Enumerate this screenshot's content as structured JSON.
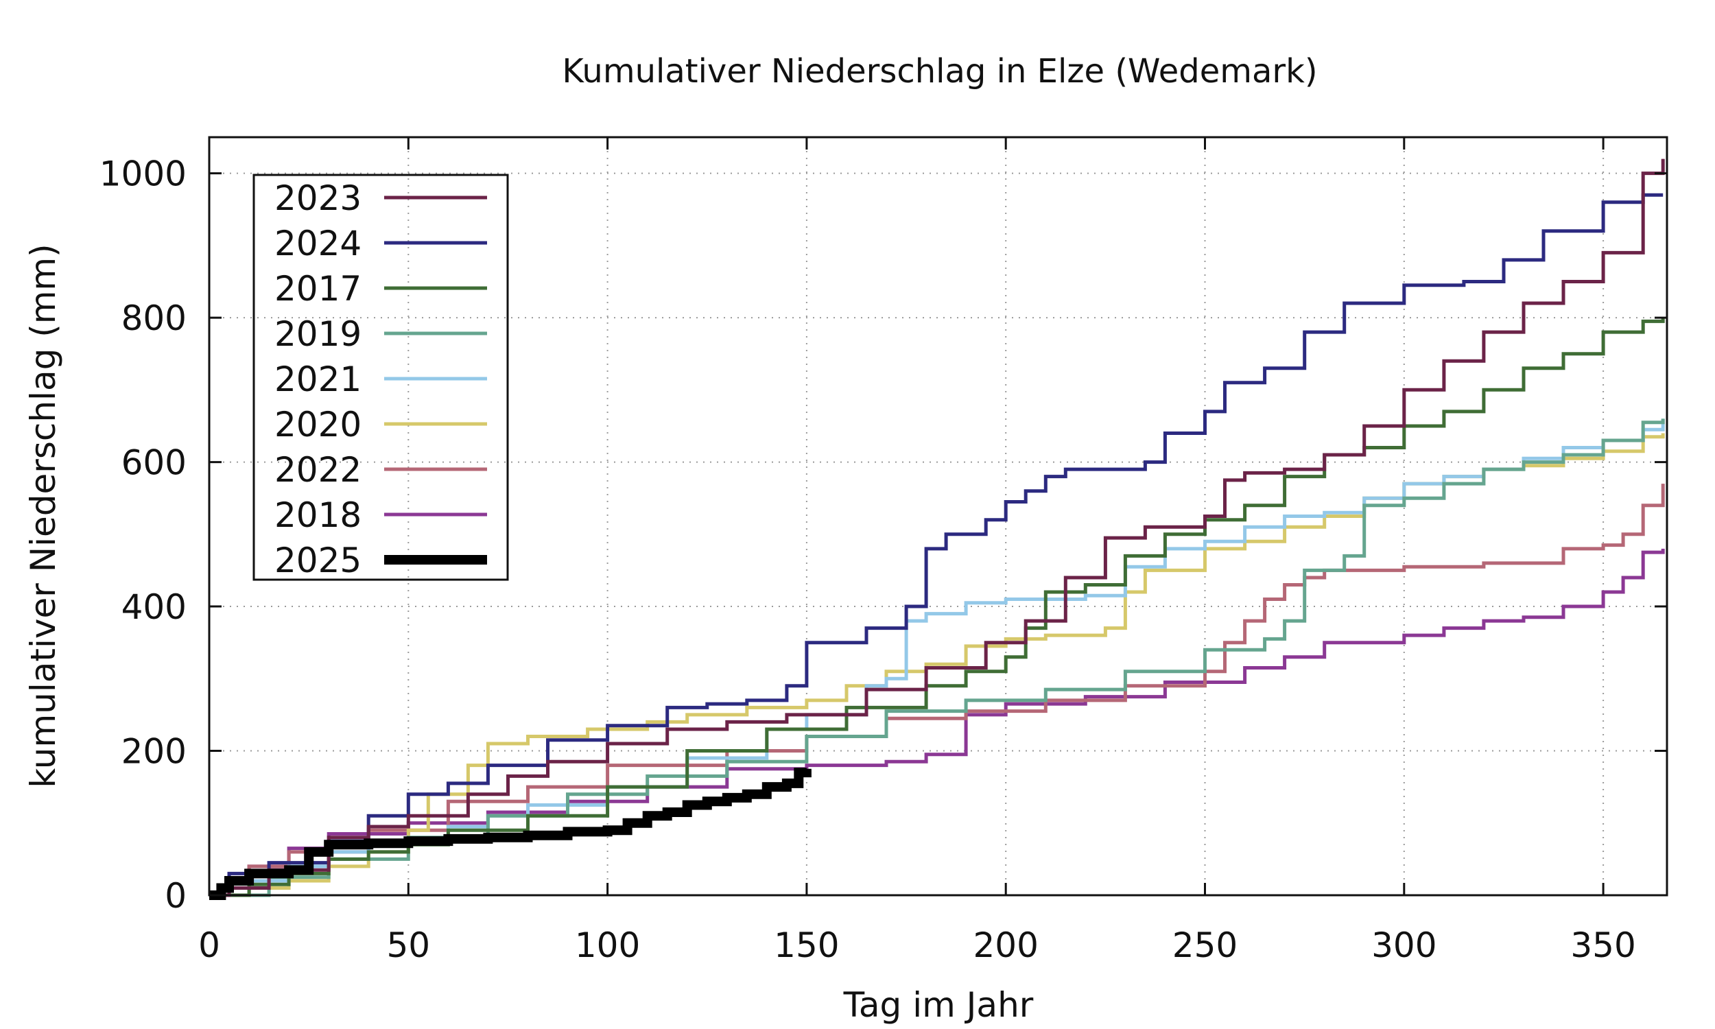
{
  "chart_data": {
    "type": "line",
    "title": "Kumulativer Niederschlag in Elze (Wedemark)",
    "xlabel": "Tag im Jahr",
    "ylabel": "kumulativer Niederschlag (mm)",
    "xlim": [
      0,
      366
    ],
    "ylim": [
      0,
      1050
    ],
    "xticks": [
      0,
      50,
      100,
      150,
      200,
      250,
      300,
      350
    ],
    "yticks": [
      0,
      200,
      400,
      600,
      800,
      1000
    ],
    "grid": true,
    "legend_position": "top-left",
    "series": [
      {
        "name": "2023",
        "color": "#6b2348",
        "width": 5,
        "x": [
          0,
          5,
          15,
          30,
          40,
          50,
          65,
          75,
          85,
          100,
          115,
          130,
          145,
          165,
          180,
          195,
          205,
          215,
          225,
          235,
          250,
          255,
          260,
          270,
          280,
          290,
          300,
          310,
          320,
          330,
          340,
          350,
          360,
          365
        ],
        "y": [
          0,
          10,
          35,
          80,
          95,
          110,
          140,
          165,
          185,
          210,
          230,
          240,
          250,
          285,
          315,
          350,
          380,
          440,
          495,
          510,
          525,
          575,
          585,
          590,
          610,
          650,
          700,
          740,
          780,
          820,
          850,
          890,
          1000,
          1020
        ]
      },
      {
        "name": "2024",
        "color": "#2c2a80",
        "width": 5,
        "x": [
          0,
          5,
          15,
          30,
          40,
          50,
          60,
          70,
          85,
          100,
          115,
          125,
          135,
          145,
          150,
          165,
          175,
          180,
          185,
          195,
          200,
          205,
          210,
          215,
          225,
          235,
          240,
          250,
          255,
          265,
          275,
          285,
          300,
          315,
          325,
          335,
          350,
          360,
          365
        ],
        "y": [
          0,
          30,
          45,
          75,
          110,
          140,
          155,
          180,
          215,
          235,
          260,
          265,
          270,
          290,
          350,
          370,
          400,
          480,
          500,
          520,
          545,
          560,
          580,
          590,
          590,
          600,
          640,
          670,
          710,
          730,
          780,
          820,
          845,
          850,
          880,
          920,
          960,
          970,
          970
        ]
      },
      {
        "name": "2017",
        "color": "#3f6d35",
        "width": 5,
        "x": [
          0,
          10,
          20,
          30,
          40,
          50,
          60,
          80,
          100,
          120,
          140,
          160,
          180,
          190,
          200,
          205,
          210,
          220,
          230,
          240,
          250,
          260,
          270,
          280,
          290,
          300,
          310,
          320,
          330,
          340,
          350,
          360,
          365
        ],
        "y": [
          0,
          15,
          30,
          50,
          60,
          70,
          90,
          110,
          150,
          200,
          230,
          260,
          290,
          310,
          330,
          370,
          420,
          430,
          470,
          500,
          520,
          540,
          580,
          610,
          620,
          650,
          670,
          700,
          730,
          750,
          780,
          795,
          800
        ]
      },
      {
        "name": "2019",
        "color": "#65a58f",
        "width": 5,
        "x": [
          0,
          15,
          30,
          50,
          70,
          90,
          110,
          130,
          150,
          170,
          190,
          210,
          230,
          250,
          265,
          270,
          275,
          285,
          290,
          300,
          310,
          320,
          330,
          340,
          350,
          360,
          365
        ],
        "y": [
          0,
          25,
          50,
          80,
          110,
          140,
          165,
          185,
          220,
          255,
          270,
          285,
          310,
          340,
          355,
          380,
          450,
          470,
          540,
          550,
          570,
          590,
          600,
          610,
          630,
          655,
          660
        ]
      },
      {
        "name": "2021",
        "color": "#93c8e8",
        "width": 5,
        "x": [
          0,
          10,
          20,
          30,
          40,
          50,
          60,
          70,
          80,
          100,
          120,
          140,
          150,
          165,
          170,
          175,
          180,
          190,
          200,
          220,
          230,
          240,
          250,
          260,
          270,
          280,
          290,
          300,
          310,
          320,
          330,
          340,
          350,
          360,
          365
        ],
        "y": [
          0,
          20,
          40,
          60,
          70,
          75,
          95,
          110,
          125,
          150,
          190,
          230,
          250,
          290,
          300,
          380,
          390,
          405,
          410,
          415,
          455,
          480,
          490,
          510,
          525,
          530,
          550,
          570,
          580,
          590,
          605,
          620,
          630,
          645,
          660
        ]
      },
      {
        "name": "2020",
        "color": "#d6c86a",
        "width": 5,
        "x": [
          0,
          5,
          20,
          30,
          40,
          50,
          55,
          65,
          70,
          80,
          95,
          110,
          120,
          135,
          150,
          160,
          170,
          180,
          190,
          200,
          210,
          225,
          230,
          235,
          250,
          260,
          270,
          280,
          290,
          300,
          310,
          320,
          330,
          340,
          350,
          360,
          365
        ],
        "y": [
          0,
          10,
          20,
          40,
          60,
          90,
          140,
          180,
          210,
          220,
          230,
          240,
          250,
          260,
          270,
          290,
          310,
          320,
          345,
          355,
          360,
          370,
          420,
          450,
          480,
          490,
          510,
          525,
          550,
          570,
          580,
          590,
          595,
          605,
          615,
          635,
          640
        ]
      },
      {
        "name": "2022",
        "color": "#b56776",
        "width": 5,
        "x": [
          0,
          10,
          20,
          40,
          60,
          80,
          100,
          130,
          150,
          170,
          190,
          210,
          230,
          250,
          255,
          260,
          265,
          270,
          275,
          280,
          300,
          320,
          340,
          350,
          355,
          360,
          365
        ],
        "y": [
          0,
          40,
          60,
          90,
          130,
          150,
          180,
          200,
          220,
          245,
          255,
          270,
          290,
          310,
          350,
          380,
          410,
          430,
          440,
          450,
          455,
          460,
          480,
          485,
          500,
          540,
          570
        ]
      },
      {
        "name": "2018",
        "color": "#8b3894",
        "width": 5,
        "x": [
          0,
          10,
          20,
          30,
          50,
          70,
          90,
          110,
          130,
          150,
          170,
          180,
          190,
          200,
          220,
          240,
          260,
          270,
          280,
          300,
          310,
          320,
          330,
          340,
          350,
          355,
          360,
          365
        ],
        "y": [
          0,
          40,
          65,
          85,
          100,
          115,
          130,
          150,
          175,
          180,
          185,
          195,
          250,
          265,
          275,
          295,
          315,
          330,
          350,
          360,
          370,
          380,
          385,
          400,
          420,
          440,
          475,
          480
        ]
      },
      {
        "name": "2025",
        "color": "#000000",
        "width": 14,
        "x": [
          0,
          3,
          5,
          10,
          20,
          25,
          30,
          40,
          50,
          60,
          70,
          80,
          90,
          100,
          105,
          110,
          115,
          120,
          125,
          130,
          135,
          140,
          145,
          148,
          150
        ],
        "y": [
          0,
          10,
          20,
          30,
          35,
          60,
          70,
          72,
          75,
          78,
          80,
          83,
          88,
          90,
          100,
          110,
          115,
          125,
          130,
          135,
          140,
          150,
          155,
          170,
          175
        ]
      }
    ]
  }
}
